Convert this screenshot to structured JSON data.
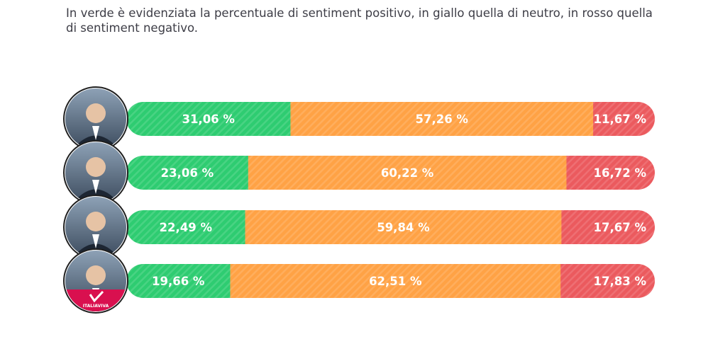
{
  "caption": "In verde è evidenziata la percentuale di sentiment positivo, in giallo quella di neutro, in rosso quella di sentiment negativo.",
  "colors": {
    "positive": "#2ecc71",
    "neutral": "#ffa245",
    "negative": "#eb5a5e"
  },
  "chart_data": {
    "type": "bar",
    "orientation": "horizontal",
    "stacked": true,
    "categories": [
      "",
      "",
      "",
      ""
    ],
    "series": [
      {
        "key": "positive",
        "values": [
          31.06,
          23.06,
          22.49,
          19.66
        ],
        "labels": [
          "31,06 %",
          "23,06 %",
          "22,49 %",
          "19,66 %"
        ]
      },
      {
        "key": "neutral",
        "values": [
          57.26,
          60.22,
          59.84,
          62.51
        ],
        "labels": [
          "57,26 %",
          "60,22 %",
          "59,84 %",
          "62,51 %"
        ]
      },
      {
        "key": "negative",
        "values": [
          11.67,
          16.72,
          17.67,
          17.83
        ],
        "labels": [
          "11,67 %",
          "16,72 %",
          "17,67 %",
          "17,83 %"
        ]
      }
    ],
    "title": "",
    "xlabel": "",
    "ylabel": "",
    "xlim": [
      0,
      100
    ],
    "grid": false,
    "legend": "none"
  },
  "avatars": [
    {
      "icon": "politician-portrait-icon"
    },
    {
      "icon": "politician-portrait-icon"
    },
    {
      "icon": "politician-portrait-icon"
    },
    {
      "icon": "politician-portrait-icon",
      "badge_text": "ITALIAVIVA"
    }
  ]
}
